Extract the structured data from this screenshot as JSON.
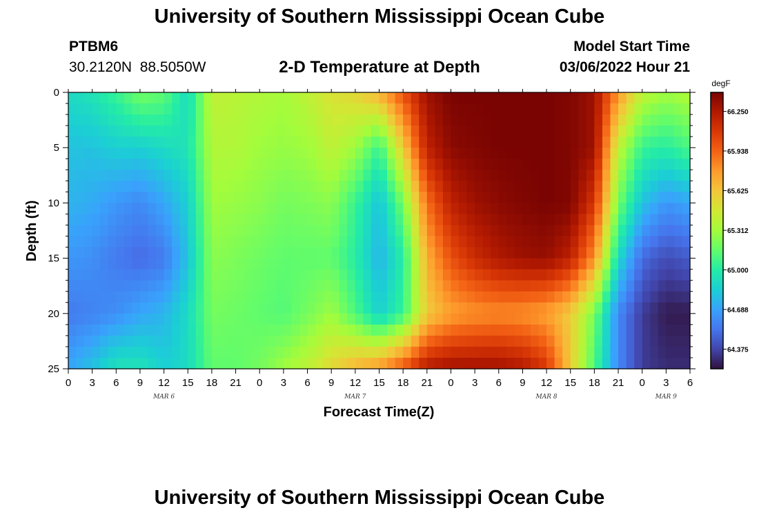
{
  "header": {
    "title": "University of Southern Mississippi Ocean Cube",
    "station_id": "PTBM6",
    "station_coords": "30.2120N  88.5050W",
    "plot_title": "2-D Temperature at Depth",
    "model_label": "Model Start Time",
    "model_date": "03/06/2022 Hour 21"
  },
  "footer": {
    "title": "University of Southern Mississippi Ocean Cube"
  },
  "chart_data": {
    "type": "heatmap",
    "title": "2-D Temperature at Depth",
    "xlabel": "Forecast Time(Z)",
    "ylabel": "Depth (ft)",
    "x_tick_labels": [
      "0",
      "3",
      "6",
      "9",
      "12",
      "15",
      "18",
      "21",
      "0",
      "3",
      "6",
      "9",
      "12",
      "15",
      "18",
      "21",
      "0",
      "3",
      "6",
      "9",
      "12",
      "15",
      "18",
      "21",
      "0",
      "3",
      "6"
    ],
    "day_labels": [
      {
        "label": "MAR 6",
        "tick_index": 4
      },
      {
        "label": "MAR 7",
        "tick_index": 12
      },
      {
        "label": "MAR 8",
        "tick_index": 20
      },
      {
        "label": "MAR 9",
        "tick_index": 25
      }
    ],
    "y_ticks": [
      0,
      5,
      10,
      15,
      20,
      25
    ],
    "ylim": [
      25,
      0
    ],
    "x_hours": [
      0,
      78
    ],
    "colorbar": {
      "unit": "degF",
      "tick_labels": [
        "66.250",
        "65.938",
        "65.625",
        "65.312",
        "65.000",
        "64.688",
        "64.375"
      ],
      "vmin": 64.22,
      "vmax": 66.4,
      "colormap": [
        "#30123b",
        "#4145ab",
        "#4675ed",
        "#39a2fc",
        "#1bcfd4",
        "#24eca6",
        "#61fc6c",
        "#a4fc3b",
        "#d1e834",
        "#f3c63a",
        "#fe9b2d",
        "#f36315",
        "#d93806",
        "#b11901",
        "#7a0402"
      ]
    },
    "depth_levels_ft": [
      0,
      5,
      10,
      15,
      20,
      25
    ],
    "x_knots_hours": [
      0,
      3,
      6,
      9,
      12,
      15,
      18,
      21,
      24,
      27,
      30,
      33,
      36,
      39,
      42,
      45,
      48,
      51,
      54,
      57,
      60,
      63,
      66,
      69,
      72,
      75,
      78
    ],
    "values": [
      [
        64.9,
        64.95,
        65.05,
        65.2,
        65.15,
        64.9,
        65.4,
        65.38,
        65.35,
        65.32,
        65.4,
        65.5,
        65.55,
        65.7,
        66.0,
        66.3,
        66.4,
        66.4,
        66.4,
        66.4,
        66.4,
        66.38,
        66.3,
        65.8,
        65.4,
        65.3,
        65.35
      ],
      [
        64.8,
        64.8,
        64.85,
        64.85,
        64.9,
        64.95,
        65.35,
        65.35,
        65.3,
        65.28,
        65.3,
        65.4,
        65.3,
        65.05,
        65.6,
        66.2,
        66.35,
        66.38,
        66.4,
        66.4,
        66.4,
        66.38,
        66.3,
        65.4,
        65.05,
        65.0,
        65.1
      ],
      [
        64.75,
        64.72,
        64.65,
        64.6,
        64.7,
        64.85,
        65.3,
        65.28,
        65.25,
        65.2,
        65.22,
        65.25,
        65.05,
        64.8,
        65.2,
        65.9,
        66.2,
        66.3,
        66.35,
        66.38,
        66.4,
        66.38,
        66.1,
        65.2,
        64.8,
        64.65,
        64.7
      ],
      [
        64.65,
        64.62,
        64.55,
        64.5,
        64.55,
        64.8,
        65.25,
        65.22,
        65.18,
        65.15,
        65.15,
        65.15,
        65.0,
        64.75,
        65.0,
        65.7,
        66.0,
        66.15,
        66.25,
        66.3,
        66.32,
        66.2,
        65.8,
        64.9,
        64.5,
        64.4,
        64.45
      ],
      [
        64.55,
        64.58,
        64.62,
        64.7,
        64.75,
        64.9,
        65.2,
        65.18,
        65.15,
        65.12,
        65.2,
        65.3,
        65.1,
        64.85,
        65.05,
        65.6,
        65.75,
        65.8,
        65.82,
        65.8,
        65.75,
        65.6,
        65.2,
        64.6,
        64.35,
        64.25,
        64.25
      ],
      [
        64.7,
        64.8,
        64.95,
        64.95,
        64.85,
        64.9,
        65.15,
        65.15,
        65.2,
        65.3,
        65.4,
        65.55,
        65.7,
        65.8,
        66.0,
        66.25,
        66.3,
        66.3,
        66.3,
        66.25,
        66.1,
        65.6,
        65.1,
        64.6,
        64.35,
        64.3,
        64.3
      ]
    ]
  }
}
